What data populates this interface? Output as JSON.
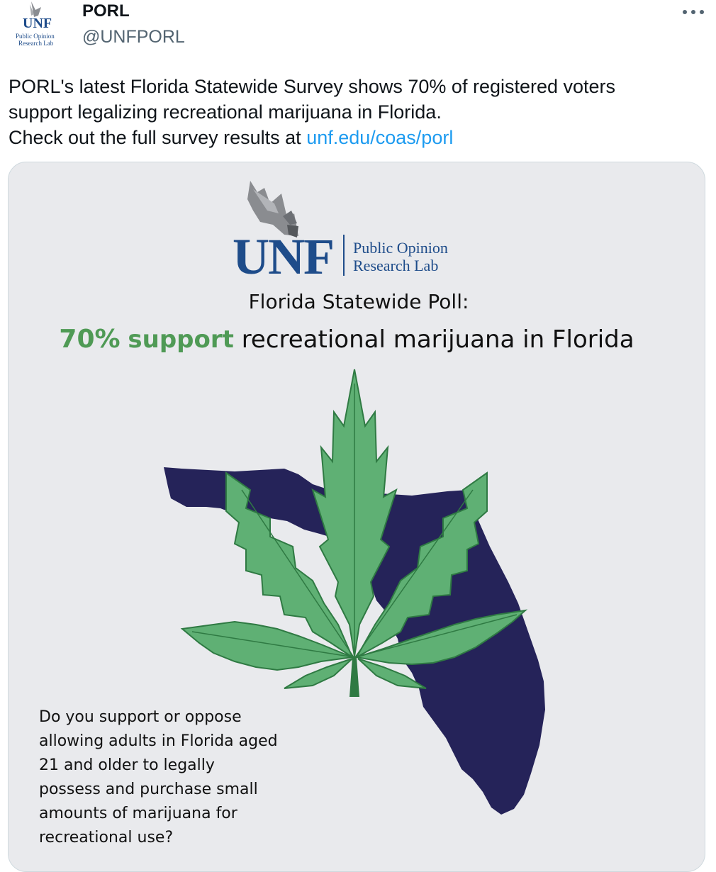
{
  "author": {
    "name": "PORL",
    "handle": "@UNFPORL",
    "avatar_logo": {
      "word": "UNF",
      "subtitle_line1": "Public Opinion",
      "subtitle_line2": "Research Lab"
    }
  },
  "more_icon": "more-horizontal-icon",
  "tweet": {
    "line1": "PORL's latest Florida Statewide Survey shows 70% of registered voters",
    "line2": "support legalizing recreational marijuana in Florida.",
    "line3_prefix": "Check out the full survey results at ",
    "link_text": "unf.edu/coas/porl"
  },
  "card": {
    "logo_word": "UNF",
    "lab_line1": "Public Opinion",
    "lab_line2": "Research Lab",
    "poll_title": "Florida Statewide Poll:",
    "headline_pct": "70%",
    "headline_support": "support",
    "headline_rest": "recreational marijuana in Florida",
    "question": "Do you support or oppose allowing adults in Florida aged 21 and older to legally possess and purchase small amounts of marijuana for recreational use?",
    "colors": {
      "background": "#e9eaed",
      "logo_blue": "#1e4c8a",
      "leaf_green": "#5fb074",
      "leaf_outline": "#2f7a43",
      "state_navy": "#252359",
      "headline_green": "#4f9a55"
    }
  }
}
